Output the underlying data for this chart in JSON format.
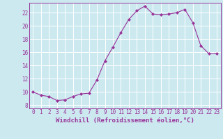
{
  "x": [
    0,
    1,
    2,
    3,
    4,
    5,
    6,
    7,
    8,
    9,
    10,
    11,
    12,
    13,
    14,
    15,
    16,
    17,
    18,
    19,
    20,
    21,
    22,
    23
  ],
  "y": [
    10.0,
    9.5,
    9.3,
    8.7,
    8.8,
    9.3,
    9.7,
    9.8,
    11.8,
    14.7,
    16.8,
    19.0,
    21.0,
    22.3,
    23.0,
    21.8,
    21.7,
    21.8,
    22.0,
    22.5,
    20.5,
    17.0,
    15.8,
    15.8
  ],
  "line_color": "#993399",
  "marker": "D",
  "marker_size": 2.0,
  "line_width": 0.8,
  "xlabel": "Windchill (Refroidissement éolien,°C)",
  "xlabel_fontsize": 6.5,
  "background_color": "#cce9f0",
  "grid_color": "#ffffff",
  "tick_color": "#993399",
  "label_color": "#993399",
  "xlim": [
    -0.5,
    23.5
  ],
  "ylim": [
    7.5,
    23.5
  ],
  "yticks": [
    8,
    10,
    12,
    14,
    16,
    18,
    20,
    22
  ],
  "xticks": [
    0,
    1,
    2,
    3,
    4,
    5,
    6,
    7,
    8,
    9,
    10,
    11,
    12,
    13,
    14,
    15,
    16,
    17,
    18,
    19,
    20,
    21,
    22,
    23
  ],
  "tick_fontsize": 5.5
}
